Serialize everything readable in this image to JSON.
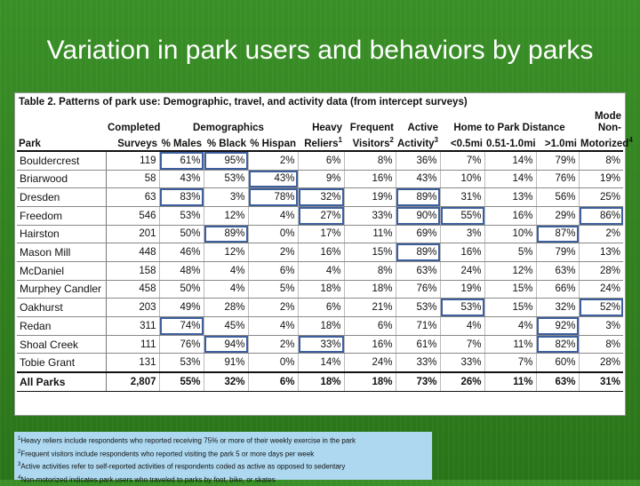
{
  "title": "Variation in park users and behaviors by parks",
  "table": {
    "caption": "Table 2.  Patterns of park use:  Demographic, travel, and activity data (from intercept surveys)",
    "header_groups": {
      "completed": "Completed",
      "demographics": "Demographics",
      "heavy": "Heavy",
      "frequent": "Frequent",
      "active": "Active",
      "distance": "Home to Park Distance",
      "mode": "Mode",
      "non": "Non-"
    },
    "columns": {
      "park": "Park",
      "surveys": "Surveys",
      "males": "% Males",
      "black": "% Black",
      "hispan": "% Hispan",
      "reliers": "Reliers",
      "reliers_sup": "1",
      "visitors": "Visitors",
      "visitors_sup": "2",
      "activity": "Activity",
      "activity_sup": "3",
      "d1": "<0.5mi",
      "d2": "0.51-1.0mi",
      "d3": ">1.0mi",
      "motorized": "Motorized",
      "motorized_sup": "4"
    },
    "rows": [
      {
        "park": "Bouldercrest",
        "cells": [
          "119",
          "61%",
          "95%",
          "2%",
          "6%",
          "8%",
          "36%",
          "7%",
          "14%",
          "79%",
          "8%"
        ]
      },
      {
        "park": "Briarwood",
        "cells": [
          "58",
          "43%",
          "53%",
          "43%",
          "9%",
          "16%",
          "43%",
          "10%",
          "14%",
          "76%",
          "19%"
        ]
      },
      {
        "park": "Dresden",
        "cells": [
          "63",
          "83%",
          "3%",
          "78%",
          "32%",
          "19%",
          "89%",
          "31%",
          "13%",
          "56%",
          "25%"
        ]
      },
      {
        "park": "Freedom",
        "cells": [
          "546",
          "53%",
          "12%",
          "4%",
          "27%",
          "33%",
          "90%",
          "55%",
          "16%",
          "29%",
          "86%"
        ]
      },
      {
        "park": "Hairston",
        "cells": [
          "201",
          "50%",
          "89%",
          "0%",
          "17%",
          "11%",
          "69%",
          "3%",
          "10%",
          "87%",
          "2%"
        ]
      },
      {
        "park": "Mason Mill",
        "cells": [
          "448",
          "46%",
          "12%",
          "2%",
          "16%",
          "15%",
          "89%",
          "16%",
          "5%",
          "79%",
          "13%"
        ]
      },
      {
        "park": "McDaniel",
        "cells": [
          "158",
          "48%",
          "4%",
          "6%",
          "4%",
          "8%",
          "63%",
          "24%",
          "12%",
          "63%",
          "28%"
        ]
      },
      {
        "park": "Murphey Candler",
        "cells": [
          "458",
          "50%",
          "4%",
          "5%",
          "18%",
          "18%",
          "76%",
          "19%",
          "15%",
          "66%",
          "24%"
        ]
      },
      {
        "park": "Oakhurst",
        "cells": [
          "203",
          "49%",
          "28%",
          "2%",
          "6%",
          "21%",
          "53%",
          "53%",
          "15%",
          "32%",
          "52%"
        ]
      },
      {
        "park": "Redan",
        "cells": [
          "311",
          "74%",
          "45%",
          "4%",
          "18%",
          "6%",
          "71%",
          "4%",
          "4%",
          "92%",
          "3%"
        ]
      },
      {
        "park": "Shoal Creek",
        "cells": [
          "111",
          "76%",
          "94%",
          "2%",
          "33%",
          "16%",
          "61%",
          "7%",
          "11%",
          "82%",
          "8%"
        ]
      },
      {
        "park": "Tobie Grant",
        "cells": [
          "131",
          "53%",
          "91%",
          "0%",
          "14%",
          "24%",
          "33%",
          "33%",
          "7%",
          "60%",
          "28%"
        ]
      }
    ],
    "total": {
      "park": "All Parks",
      "cells": [
        "2,807",
        "55%",
        "32%",
        "6%",
        "18%",
        "18%",
        "73%",
        "26%",
        "11%",
        "63%",
        "31%"
      ]
    },
    "highlight_color": "#3d5f9c"
  },
  "footnotes": [
    {
      "sup": "1",
      "text": "Heavy reliers include respondents who reported receiving 75% or more of their weekly exercise in the park"
    },
    {
      "sup": "2",
      "text": "Frequent visitors include respondents who reported visiting the park 5 or more days per week"
    },
    {
      "sup": "3",
      "text": "Active activities refer to self-reported activities of respondents coded as active as opposed to sedentary"
    },
    {
      "sup": "4",
      "text": "Non-motorized indicates park users who traveled to parks by foot, bike, or skates"
    }
  ]
}
